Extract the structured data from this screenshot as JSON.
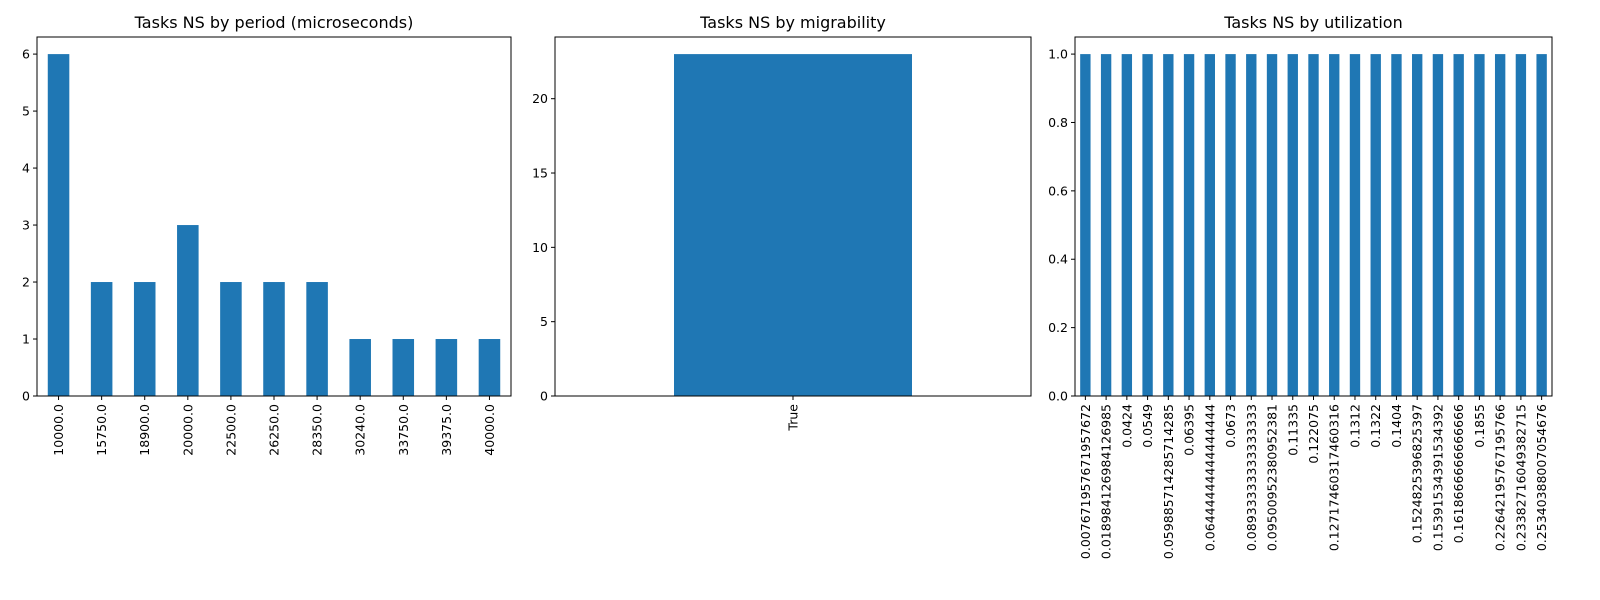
{
  "chart_data": [
    {
      "type": "bar",
      "title": "Tasks NS by period (microseconds)",
      "xlabel": "",
      "ylabel": "",
      "categories": [
        "10000.0",
        "15750.0",
        "18900.0",
        "20000.0",
        "22500.0",
        "26250.0",
        "28350.0",
        "30240.0",
        "33750.0",
        "39375.0",
        "40000.0"
      ],
      "values": [
        6,
        2,
        2,
        3,
        2,
        2,
        2,
        1,
        1,
        1,
        1
      ],
      "ylim": [
        0,
        6.3
      ],
      "yticks": [
        0,
        1,
        2,
        3,
        4,
        5,
        6
      ],
      "ytick_labels": [
        "0",
        "1",
        "2",
        "3",
        "4",
        "5",
        "6"
      ],
      "color": "#1f77b4",
      "grid": false
    },
    {
      "type": "bar",
      "title": "Tasks NS by migrability",
      "xlabel": "",
      "ylabel": "",
      "categories": [
        "True"
      ],
      "values": [
        23
      ],
      "ylim": [
        0,
        24.15
      ],
      "yticks": [
        0,
        5,
        10,
        15,
        20
      ],
      "ytick_labels": [
        "0",
        "5",
        "10",
        "15",
        "20"
      ],
      "color": "#1f77b4",
      "grid": false
    },
    {
      "type": "bar",
      "title": "Tasks NS by utilization",
      "xlabel": "",
      "ylabel": "",
      "categories": [
        "0.007671957671957672",
        "0.018984126984126985",
        "0.0424",
        "0.0549",
        "0.059885714285714285",
        "0.06395",
        "0.06444444444444444",
        "0.0673",
        "0.08933333333333333",
        "0.09500952380952381",
        "0.11335",
        "0.122075",
        "0.1271746031746031 6",
        "0.1312",
        "0.1322",
        "0.1404",
        "0.152482539682539 7",
        "0.153915343915343 92",
        "0.161866666666666 6",
        "0.1855",
        "0.226421957671957 66",
        "0.233827160493827 15",
        "0.253403880070546 76"
      ],
      "values": [
        1,
        1,
        1,
        1,
        1,
        1,
        1,
        1,
        1,
        1,
        1,
        1,
        1,
        1,
        1,
        1,
        1,
        1,
        1,
        1,
        1,
        1,
        1
      ],
      "ylim": [
        0,
        1.05
      ],
      "yticks": [
        0,
        0.2,
        0.4,
        0.6,
        0.8,
        1.0
      ],
      "ytick_labels": [
        "0.0",
        "0.2",
        "0.4",
        "0.6",
        "0.8",
        "1.0"
      ],
      "color": "#1f77b4",
      "grid": false
    }
  ]
}
